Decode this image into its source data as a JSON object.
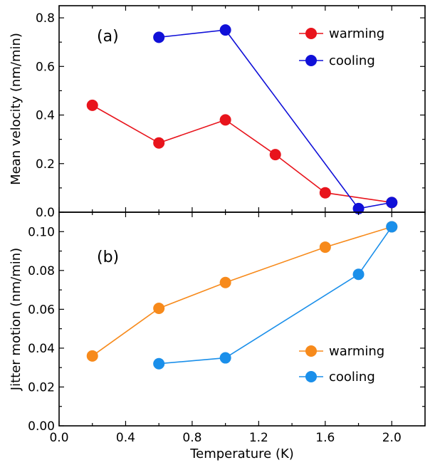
{
  "chart_data": [
    {
      "type": "line",
      "panel_label": "(a)",
      "xlabel": "Temperature (K)",
      "ylabel": "Mean velocity (nm/min)",
      "xlim": [
        0.0,
        2.2
      ],
      "ylim": [
        0.0,
        0.85
      ],
      "x_ticks": [
        "0.0",
        "0.4",
        "0.8",
        "1.2",
        "1.6",
        "2.0"
      ],
      "y_ticks": [
        "0.0",
        "0.2",
        "0.4",
        "0.6",
        "0.8"
      ],
      "legend_position": "top-right",
      "series": [
        {
          "name": "warming",
          "color": "#e8141c",
          "points": [
            [
              0.2,
              0.44
            ],
            [
              0.6,
              0.285
            ],
            [
              1.0,
              0.38
            ],
            [
              1.3,
              0.237
            ],
            [
              1.6,
              0.08
            ],
            [
              2.0,
              0.04
            ]
          ]
        },
        {
          "name": "cooling",
          "color": "#1010d8",
          "points": [
            [
              0.6,
              0.72
            ],
            [
              1.0,
              0.75
            ],
            [
              1.8,
              0.015
            ],
            [
              2.0,
              0.04
            ]
          ]
        }
      ]
    },
    {
      "type": "line",
      "panel_label": "(b)",
      "xlabel": "Temperature (K)",
      "ylabel": "Jitter motion (nm/min)",
      "xlim": [
        0.0,
        2.2
      ],
      "ylim": [
        0.0,
        0.11
      ],
      "x_ticks": [
        "0.0",
        "0.4",
        "0.8",
        "1.2",
        "1.6",
        "2.0"
      ],
      "y_ticks": [
        "0.00",
        "0.02",
        "0.04",
        "0.06",
        "0.08",
        "0.10"
      ],
      "legend_position": "bottom-right",
      "series": [
        {
          "name": "warming",
          "color": "#f78a1b",
          "points": [
            [
              0.2,
              0.036
            ],
            [
              0.6,
              0.0605
            ],
            [
              1.0,
              0.0738
            ],
            [
              1.6,
              0.092
            ],
            [
              2.0,
              0.1025
            ]
          ]
        },
        {
          "name": "cooling",
          "color": "#1a8fea",
          "points": [
            [
              0.6,
              0.032
            ],
            [
              1.0,
              0.035
            ],
            [
              1.8,
              0.078
            ],
            [
              2.0,
              0.1025
            ]
          ]
        }
      ]
    }
  ]
}
